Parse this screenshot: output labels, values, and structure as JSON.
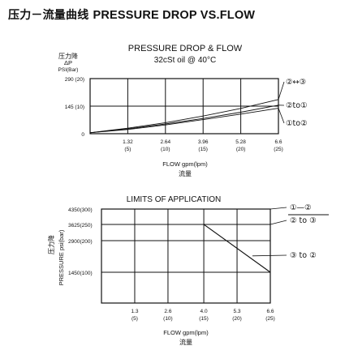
{
  "page_title_cn": "压力－流量曲线",
  "page_title_en": "PRESSURE DROP VS.FLOW",
  "chart_data": [
    {
      "type": "line",
      "title": "PRESSURE DROP & FLOW",
      "subtitle": "32cSt oil @ 40°C",
      "ylabel_cn": "压力降",
      "ylabel_symbol": "ΔP",
      "ylabel_unit": "PSI(Bar)",
      "xlabel": "FLOW gpm(lpm)",
      "xlabel_cn": "流量",
      "ylim": [
        0,
        290
      ],
      "xlim": [
        0,
        6.6
      ],
      "grid": true,
      "y_ticks": [
        {
          "value": 0,
          "label": "0"
        },
        {
          "value": 145,
          "label": "145 (10)"
        },
        {
          "value": 290,
          "label": "290 (20)"
        }
      ],
      "x_ticks": [
        {
          "value": 1.32,
          "label": "1.32",
          "sublabel": "(5)"
        },
        {
          "value": 2.64,
          "label": "2.64",
          "sublabel": "(10)"
        },
        {
          "value": 3.96,
          "label": "3.96",
          "sublabel": "(15)"
        },
        {
          "value": 5.28,
          "label": "5.28",
          "sublabel": "(20)"
        },
        {
          "value": 6.6,
          "label": "6.6",
          "sublabel": "(25)"
        }
      ],
      "series": [
        {
          "name": "②↔③",
          "x": [
            0,
            1.32,
            2.64,
            3.96,
            5.28,
            6.6
          ],
          "y": [
            5,
            29,
            58,
            93,
            133,
            180
          ]
        },
        {
          "name": "②to①",
          "x": [
            0,
            1.32,
            2.64,
            3.96,
            5.28,
            6.6
          ],
          "y": [
            5,
            25,
            51,
            80,
            113,
            150
          ]
        },
        {
          "name": "①to②",
          "x": [
            0,
            1.32,
            2.64,
            3.96,
            5.28,
            6.6
          ],
          "y": [
            5,
            22,
            46,
            74,
            103,
            134
          ]
        }
      ]
    },
    {
      "type": "line",
      "title": "LIMITS  OF APPLICATION",
      "ylabel": "PRESSURE  psi(bar)",
      "ylabel_cn": "压力降",
      "xlabel": "FLOW gpm(lpm)",
      "xlabel_cn": "流量",
      "ylim": [
        0,
        4350
      ],
      "xlim": [
        0,
        6.6
      ],
      "grid": true,
      "y_ticks": [
        {
          "value": 4350,
          "label": "4350(300)"
        },
        {
          "value": 3625,
          "label": "3625(250)"
        },
        {
          "value": 2900,
          "label": "2900(200)"
        },
        {
          "value": 1450,
          "label": "1450(100)"
        }
      ],
      "x_ticks": [
        {
          "value": 1.3,
          "label": "1.3",
          "sublabel": "(5)"
        },
        {
          "value": 2.6,
          "label": "2.6",
          "sublabel": "(10)"
        },
        {
          "value": 4.0,
          "label": "4.0",
          "sublabel": "(15)"
        },
        {
          "value": 5.3,
          "label": "5.3",
          "sublabel": "(20)"
        },
        {
          "value": 6.6,
          "label": "6.6",
          "sublabel": "(25)"
        }
      ],
      "series": [
        {
          "name": "①—②",
          "x": [
            0,
            6.6
          ],
          "y": [
            4350,
            4350
          ]
        },
        {
          "name": "② to ③",
          "x": [
            0,
            6.6
          ],
          "y": [
            3625,
            3625
          ]
        },
        {
          "name": "③ to ②",
          "x": [
            0,
            4.0,
            6.6
          ],
          "y": [
            3625,
            3625,
            1450
          ]
        }
      ]
    }
  ]
}
